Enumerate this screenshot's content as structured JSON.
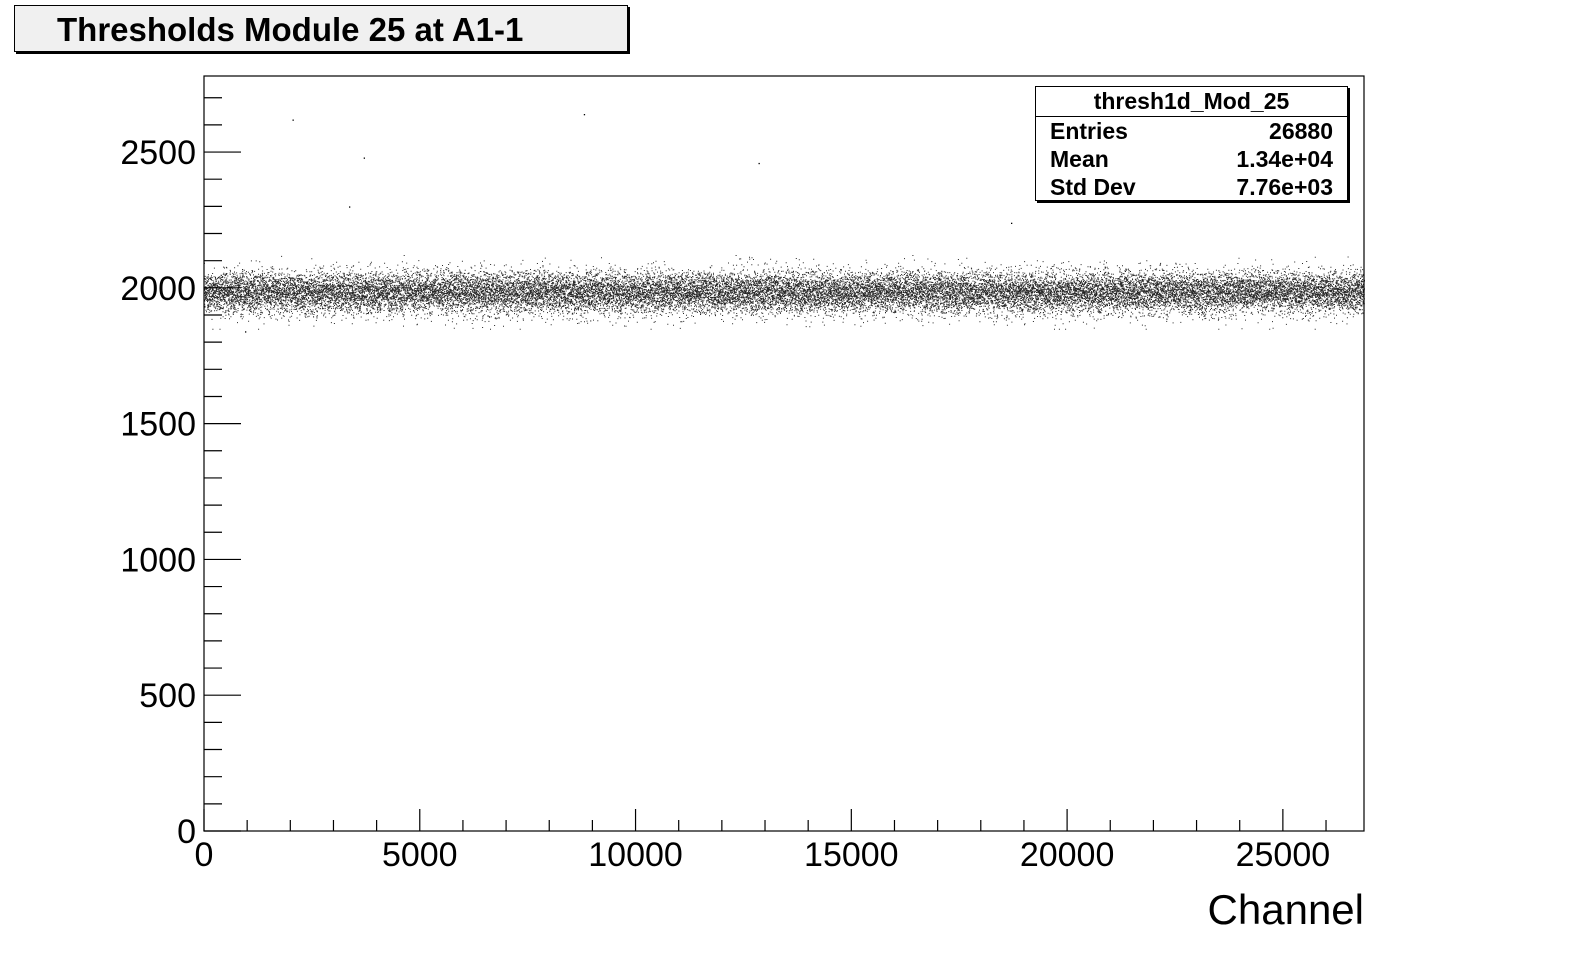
{
  "chart_data": {
    "type": "scatter",
    "title": "Thresholds Module 25 at A1-1",
    "xlabel": "Channel",
    "ylabel": "",
    "xlim": [
      0,
      26880
    ],
    "ylim": [
      0,
      2780
    ],
    "x_ticks": [
      0,
      5000,
      10000,
      15000,
      20000,
      25000
    ],
    "x_tick_labels": [
      "0",
      "5000",
      "10000",
      "15000",
      "20000",
      "25000"
    ],
    "y_ticks": [
      0,
      500,
      1000,
      1500,
      2000,
      2500
    ],
    "y_tick_labels": [
      "0",
      "500",
      "1000",
      "1500",
      "2000",
      "2500"
    ],
    "grid": false,
    "legend": "none",
    "marker_color": "#000000",
    "series": [
      {
        "points_count": 26880,
        "band_center": 1985,
        "band_halfwidth": 85,
        "outliers": [
          {
            "x": 2050,
            "y": 2620
          },
          {
            "x": 3700,
            "y": 2480
          },
          {
            "x": 3360,
            "y": 2300
          },
          {
            "x": 8800,
            "y": 2640
          },
          {
            "x": 12850,
            "y": 2460
          },
          {
            "x": 18700,
            "y": 2240
          },
          {
            "x": 950,
            "y": 1840
          }
        ]
      }
    ],
    "stats": {
      "name": "thresh1d_Mod_25",
      "rows": [
        {
          "label": "Entries",
          "value": "26880"
        },
        {
          "label": "Mean",
          "value": "1.34e+04"
        },
        {
          "label": "Std Dev",
          "value": "7.76e+03"
        }
      ]
    }
  }
}
